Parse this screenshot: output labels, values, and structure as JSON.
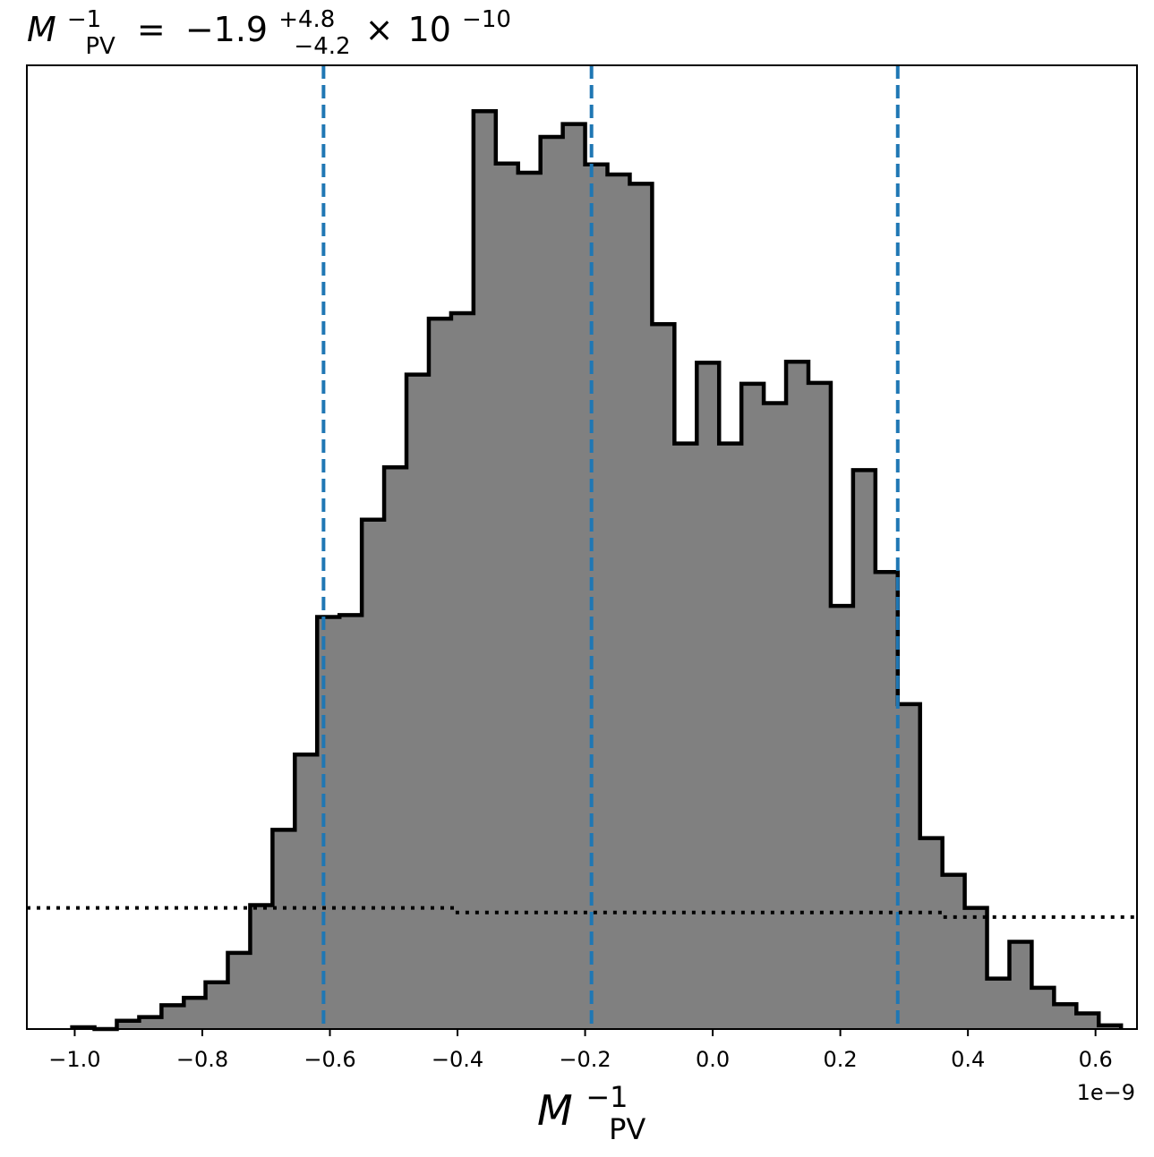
{
  "chart_data": {
    "type": "histogram",
    "title": {
      "symbol": "M",
      "symbol_sup": "−1",
      "symbol_sub": "PV",
      "equals": "=",
      "median": "−1.9",
      "plus": "+4.8",
      "minus": "−4.2",
      "times": "×",
      "base": "10",
      "exponent": "−10"
    },
    "xlabel": {
      "symbol": "M",
      "sup": "−1",
      "sub": "PV"
    },
    "offset_text": "1e−9",
    "xlim": [
      -1.075,
      0.665
    ],
    "ylim": [
      0,
      1.05
    ],
    "xticks": [
      -1.0,
      -0.8,
      -0.6,
      -0.4,
      -0.2,
      0.0,
      0.2,
      0.4,
      0.6
    ],
    "xtick_labels": [
      "−1.0",
      "−0.8",
      "−0.6",
      "−0.4",
      "−0.2",
      "0.0",
      "0.2",
      "0.4",
      "0.6"
    ],
    "bin_edges": [
      -1.004,
      -0.969,
      -0.934,
      -0.899,
      -0.864,
      -0.829,
      -0.795,
      -0.76,
      -0.725,
      -0.69,
      -0.655,
      -0.62,
      -0.585,
      -0.55,
      -0.515,
      -0.48,
      -0.445,
      -0.41,
      -0.375,
      -0.34,
      -0.305,
      -0.27,
      -0.235,
      -0.2,
      -0.165,
      -0.13,
      -0.095,
      -0.06,
      -0.025,
      0.01,
      0.045,
      0.08,
      0.115,
      0.15,
      0.185,
      0.22,
      0.255,
      0.29,
      0.325,
      0.36,
      0.395,
      0.43,
      0.465,
      0.5,
      0.535,
      0.57,
      0.605,
      0.64
    ],
    "counts": [
      0.002,
      0.0,
      0.009,
      0.013,
      0.026,
      0.034,
      0.051,
      0.083,
      0.135,
      0.217,
      0.299,
      0.449,
      0.451,
      0.555,
      0.612,
      0.713,
      0.774,
      0.78,
      1.0,
      0.943,
      0.933,
      0.972,
      0.986,
      0.942,
      0.931,
      0.921,
      0.768,
      0.638,
      0.726,
      0.638,
      0.703,
      0.682,
      0.727,
      0.704,
      0.461,
      0.609,
      0.498,
      0.354,
      0.208,
      0.168,
      0.132,
      0.055,
      0.095,
      0.045,
      0.027,
      0.017,
      0.004
    ],
    "quantile_lines": [
      -0.61,
      -0.19,
      0.29
    ],
    "prior_line": {
      "x": [
        -1.075,
        -0.405,
        -0.405,
        0.36,
        0.36,
        0.665
      ],
      "y": [
        0.132,
        0.132,
        0.127,
        0.127,
        0.122,
        0.122
      ]
    },
    "colors": {
      "fill": "#808080",
      "edge": "#000000",
      "quantile": "#1f77b4",
      "prior": "#000000"
    },
    "grid": false,
    "legend": "none"
  }
}
